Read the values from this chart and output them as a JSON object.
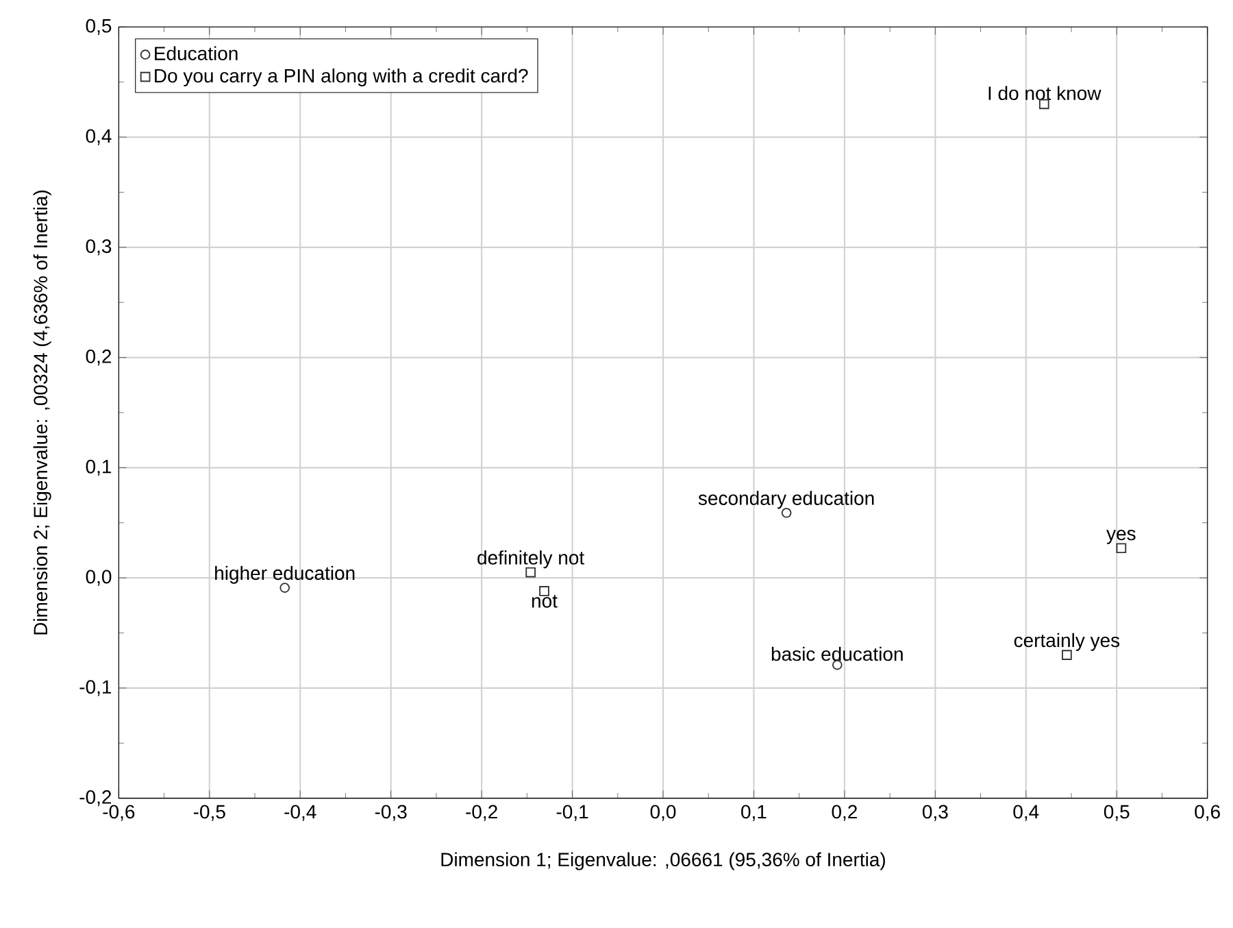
{
  "chart_data": {
    "type": "scatter",
    "xlabel": "Dimension 1; Eigenvalue: ,06661 (95,36% of Inertia)",
    "ylabel": "Dimension 2; Eigenvalue: ,00324 (4,636% of Inertia)",
    "series": [
      {
        "name": "Education",
        "color": "#333333",
        "marker": "circle",
        "x": [
          -0.417,
          0.136,
          0.192
        ],
        "values": [
          -0.009,
          0.059,
          -0.079
        ]
      },
      {
        "name": "Do you carry a PIN along with a credit card?",
        "color": "#333333",
        "marker": "square",
        "x": [
          -0.146,
          -0.131,
          0.42,
          0.505,
          0.445
        ],
        "values": [
          0.005,
          -0.012,
          0.43,
          0.027,
          -0.07
        ]
      }
    ],
    "annotations": [
      {
        "text": "higher education",
        "x": -0.417,
        "y": -0.009
      },
      {
        "text": "secondary education",
        "x": 0.136,
        "y": 0.059
      },
      {
        "text": "basic education",
        "x": 0.192,
        "y": -0.079
      },
      {
        "text": "definitely not",
        "x": -0.146,
        "y": 0.005
      },
      {
        "text": "not",
        "x": -0.131,
        "y": -0.012
      },
      {
        "text": "I do not know",
        "x": 0.42,
        "y": 0.43
      },
      {
        "text": "yes",
        "x": 0.505,
        "y": 0.027
      },
      {
        "text": "certainly yes",
        "x": 0.445,
        "y": -0.07
      }
    ],
    "xlim": [
      -0.6,
      0.6
    ],
    "ylim": [
      -0.2,
      0.5
    ],
    "xticks": [
      {
        "value": -0.6,
        "label": "-0,6"
      },
      {
        "value": -0.5,
        "label": "-0,5"
      },
      {
        "value": -0.4,
        "label": "-0,4"
      },
      {
        "value": -0.3,
        "label": "-0,3"
      },
      {
        "value": -0.2,
        "label": "-0,2"
      },
      {
        "value": -0.1,
        "label": "-0,1"
      },
      {
        "value": 0,
        "label": "0,0"
      },
      {
        "value": 0.1,
        "label": "0,1"
      },
      {
        "value": 0.2,
        "label": "0,2"
      },
      {
        "value": 0.3,
        "label": "0,3"
      },
      {
        "value": 0.4,
        "label": "0,4"
      },
      {
        "value": 0.5,
        "label": "0,5"
      },
      {
        "value": 0.6,
        "label": "0,6"
      }
    ],
    "yticks": [
      {
        "value": -0.2,
        "label": "-0,2"
      },
      {
        "value": -0.1,
        "label": "-0,1"
      },
      {
        "value": 0,
        "label": "0,0"
      },
      {
        "value": 0.1,
        "label": "0,1"
      },
      {
        "value": 0.2,
        "label": "0,2"
      },
      {
        "value": 0.3,
        "label": "0,3"
      },
      {
        "value": 0.4,
        "label": "0,4"
      },
      {
        "value": 0.5,
        "label": "0,5"
      }
    ],
    "grid": true,
    "legend": "top left"
  }
}
